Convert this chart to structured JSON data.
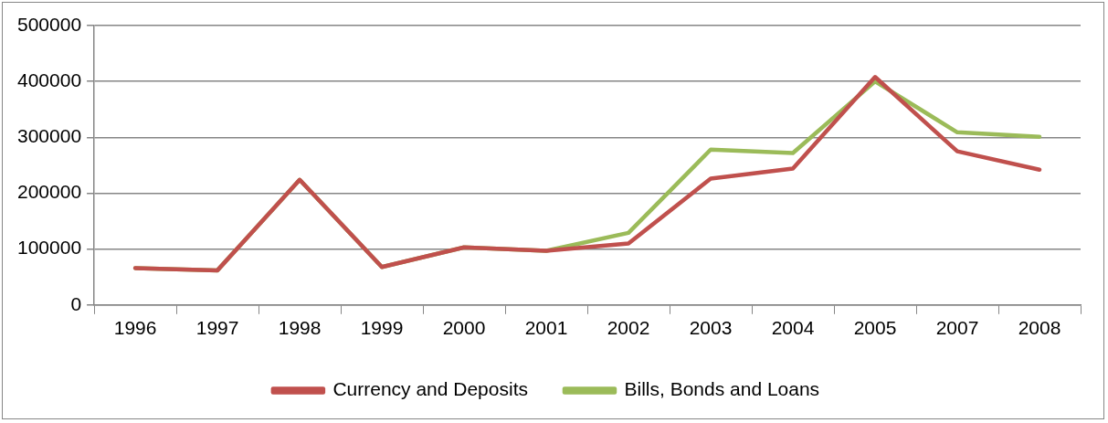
{
  "chart_data": {
    "type": "line",
    "categories": [
      "1996",
      "1997",
      "1998",
      "1999",
      "2000",
      "2001",
      "2002",
      "2003",
      "2004",
      "2005",
      "2007",
      "2008"
    ],
    "series": [
      {
        "name": "Currency and Deposits",
        "color": "#c0504d",
        "values": [
          66000,
          62000,
          224000,
          68000,
          103000,
          97000,
          110000,
          226000,
          244000,
          408000,
          275000,
          242000
        ]
      },
      {
        "name": "Bills, Bonds and Loans",
        "color": "#9bbb59",
        "values": [
          66000,
          62000,
          224000,
          68000,
          103000,
          97000,
          129000,
          278000,
          272000,
          400000,
          309000,
          301000
        ]
      }
    ],
    "ylim": [
      0,
      500000
    ],
    "yticks": [
      0,
      100000,
      200000,
      300000,
      400000,
      500000
    ],
    "grid": "y",
    "legend": "bottom",
    "marker": "none",
    "line_style": "solid"
  }
}
